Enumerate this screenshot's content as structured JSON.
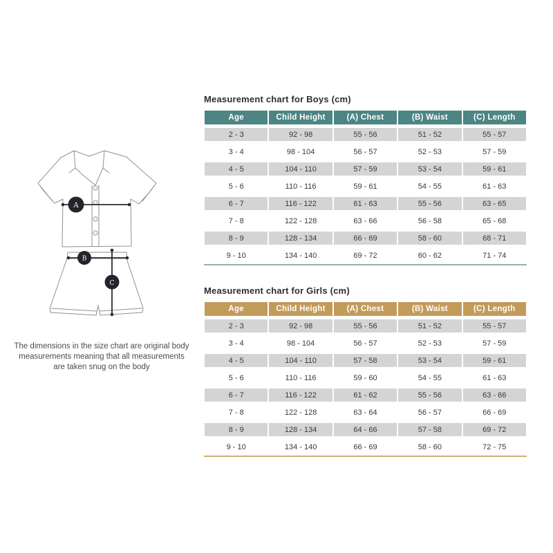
{
  "note": "The dimensions in the size chart are original body measurements meaning that all measurements are taken snug on the body",
  "illustration": {
    "marker_a": "A",
    "marker_b": "B",
    "marker_c": "C",
    "outline_color": "#8f8f8f",
    "measure_line_color": "#2c2c2c",
    "badge_color": "#22262c"
  },
  "tables": [
    {
      "key": "boys",
      "title": "Measurement chart for Boys (cm)",
      "accent": "#4d8484",
      "bottom_border": "#8fb2b2",
      "row_alt": "#d4d4d4",
      "columns": [
        "Age",
        "Child Height",
        "(A) Chest",
        "(B) Waist",
        "(C) Length"
      ],
      "rows": [
        [
          "2 - 3",
          "92 - 98",
          "55 - 56",
          "51 - 52",
          "55 - 57"
        ],
        [
          "3 - 4",
          "98 - 104",
          "56 - 57",
          "52 - 53",
          "57 - 59"
        ],
        [
          "4 - 5",
          "104 - 110",
          "57 - 59",
          "53 - 54",
          "59 - 61"
        ],
        [
          "5 - 6",
          "110 - 116",
          "59 - 61",
          "54 - 55",
          "61 - 63"
        ],
        [
          "6 - 7",
          "116 - 122",
          "61 - 63",
          "55 - 56",
          "63 - 65"
        ],
        [
          "7 - 8",
          "122 - 128",
          "63 - 66",
          "56 - 58",
          "65 - 68"
        ],
        [
          "8 - 9",
          "128 - 134",
          "66 - 69",
          "58 - 60",
          "68 - 71"
        ],
        [
          "9 - 10",
          "134 - 140",
          "69 - 72",
          "60 - 62",
          "71 - 74"
        ]
      ]
    },
    {
      "key": "girls",
      "title": "Measurement chart for Girls (cm)",
      "accent": "#c39b59",
      "bottom_border": "#d5ac6e",
      "row_alt": "#d4d4d4",
      "columns": [
        "Age",
        "Child Height",
        "(A) Chest",
        "(B) Waist",
        "(C) Length"
      ],
      "rows": [
        [
          "2 - 3",
          "92 - 98",
          "55 - 56",
          "51 - 52",
          "55 - 57"
        ],
        [
          "3 - 4",
          "98 - 104",
          "56 - 57",
          "52 - 53",
          "57 - 59"
        ],
        [
          "4 - 5",
          "104 - 110",
          "57 - 58",
          "53 - 54",
          "59 - 61"
        ],
        [
          "5 - 6",
          "110 - 116",
          "59 - 60",
          "54 - 55",
          "61 - 63"
        ],
        [
          "6 - 7",
          "116 - 122",
          "61 - 62",
          "55 - 56",
          "63 - 66"
        ],
        [
          "7 - 8",
          "122 - 128",
          "63 - 64",
          "56 - 57",
          "66 - 69"
        ],
        [
          "8 - 9",
          "128 - 134",
          "64 - 66",
          "57 - 58",
          "69 - 72"
        ],
        [
          "9 - 10",
          "134 - 140",
          "66 - 69",
          "58 - 60",
          "72 - 75"
        ]
      ]
    }
  ]
}
